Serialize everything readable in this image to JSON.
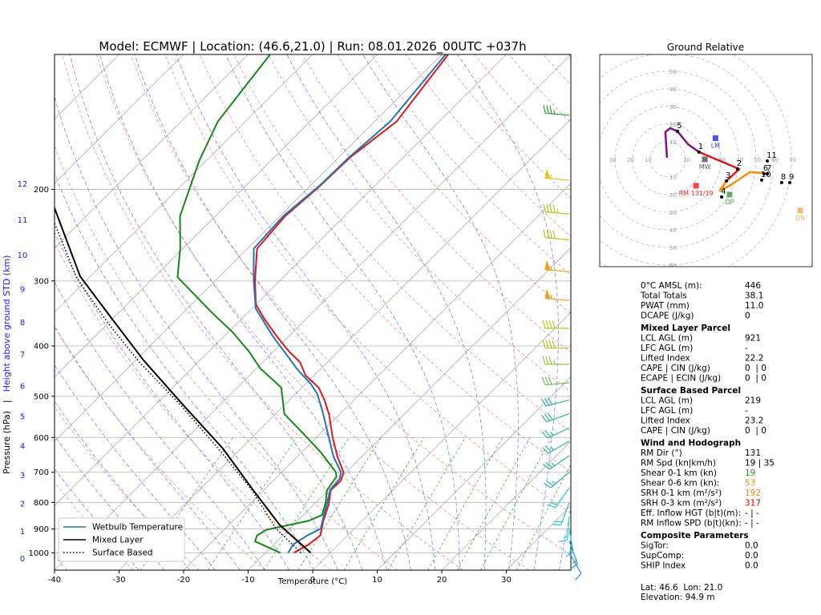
{
  "chart_data": [
    {
      "type": "skewt",
      "title": "Model: ECMWF | Location: (46.6,21.0) | Run: 08.01.2026_00UTC +037h",
      "xlabel": "Temperature (°C)",
      "ylabel": "Pressure (hPa)",
      "ylabel_separator": "|",
      "y2label": "Height above ground STD (km)",
      "xlim": [
        -40,
        40
      ],
      "xticks": [
        -40,
        -30,
        -20,
        -10,
        0,
        10,
        20,
        30
      ],
      "ylim": [
        1080,
        110
      ],
      "yticks": [
        1000,
        900,
        800,
        700,
        600,
        500,
        400,
        300,
        200
      ],
      "log_y": true,
      "grid": true,
      "height_ticks": [
        0,
        1,
        2,
        3,
        4,
        5,
        6,
        7,
        8,
        9,
        10,
        11,
        12
      ],
      "legend": "lower left",
      "series": [
        {
          "color": "#e8141a",
          "pressure": [
            1000,
            964,
            926,
            868,
            808,
            758,
            727,
            700,
            653,
            597,
            542,
            508,
            481,
            456,
            430,
            410,
            383,
            354,
            333,
            300,
            260,
            225,
            199,
            173,
            148,
            110
          ],
          "values": [
            -5.6,
            -4.6,
            -4.2,
            -6.0,
            -7.7,
            -9.6,
            -9.5,
            -10.4,
            -13.8,
            -17.7,
            -21.6,
            -24.6,
            -27.4,
            -31.3,
            -34.2,
            -37.6,
            -41.9,
            -46.6,
            -50.0,
            -53.8,
            -58.5,
            -59.2,
            -58.5,
            -58.2,
            -56.6,
            -59.0
          ]
        },
        {
          "color": "#138a13",
          "pressure": [
            1000,
            951,
            926,
            903,
            868,
            846,
            800,
            758,
            714,
            700,
            641,
            585,
            541,
            481,
            442,
            410,
            376,
            345,
            295,
            260,
            225,
            176,
            148,
            110
          ],
          "values": [
            -7.7,
            -13.4,
            -14.0,
            -13.4,
            -8.3,
            -7.1,
            -8.5,
            -10.2,
            -10.8,
            -11.6,
            -17.0,
            -23.2,
            -28.6,
            -33.2,
            -39.4,
            -43.8,
            -49.4,
            -55.6,
            -66.4,
            -70.4,
            -75.5,
            -81.1,
            -84.3,
            -86.6
          ]
        },
        {
          "name": "Wetbulb Temperature",
          "color": "#1f77b4",
          "pressure": [
            1000,
            964,
            925,
            899,
            853,
            808,
            758,
            721,
            700,
            653,
            597,
            537,
            495,
            474,
            442,
            419,
            383,
            339,
            300,
            260,
            225,
            197,
            173,
            148,
            110
          ],
          "values": [
            -6.5,
            -7.0,
            -6.2,
            -5.2,
            -6.6,
            -8.0,
            -9.7,
            -10.0,
            -10.8,
            -14.4,
            -18.3,
            -22.9,
            -26.6,
            -29.1,
            -33.8,
            -37.0,
            -42.5,
            -49.4,
            -54.0,
            -59.0,
            -59.5,
            -58.6,
            -58.4,
            -57.6,
            -59.4
          ]
        },
        {
          "name": "Mixed Layer",
          "color": "#000000",
          "linestyle": "solid",
          "pressure": [
            1000,
            883,
            758,
            630,
            518,
            426,
            357,
            294,
            210
          ],
          "values": [
            -3.0,
            -12.2,
            -21.6,
            -32.8,
            -45.9,
            -58.8,
            -69.7,
            -81.6,
            -97.8
          ]
        },
        {
          "name": "Surface Based",
          "color": "#000000",
          "linestyle": "dotted",
          "pressure": [
            1000,
            899,
            758,
            635,
            518,
            430,
            360,
            296,
            219
          ],
          "values": [
            -4.5,
            -12.1,
            -21.8,
            -33.0,
            -46.3,
            -59.1,
            -70.3,
            -81.9,
            -96.7
          ]
        }
      ],
      "wind": {
        "pressure": [
          144,
          192,
          223,
          250,
          288,
          327,
          370,
          404,
          434,
          471,
          508,
          540,
          575,
          610,
          650,
          700,
          750,
          800,
          850,
          900,
          950,
          1000
        ],
        "direction": [
          275,
          275,
          275,
          275,
          275,
          275,
          270,
          270,
          270,
          265,
          255,
          250,
          245,
          240,
          235,
          230,
          215,
          200,
          185,
          170,
          160,
          150
        ],
        "speed": [
          35,
          55,
          45,
          40,
          55,
          55,
          40,
          40,
          35,
          30,
          30,
          30,
          25,
          25,
          25,
          25,
          20,
          20,
          15,
          15,
          15,
          10
        ],
        "colors": [
          "#2ca02c",
          "#e6c619",
          "#b8c41a",
          "#b8c41a",
          "#f0a01a",
          "#f0a01a",
          "#b8c41a",
          "#b8c41a",
          "#8cc63e",
          "#6cc04a",
          "#2ab5a0",
          "#2ab5a0",
          "#2ab5a0",
          "#2ab5a0",
          "#2ab5a0",
          "#2ab5a0",
          "#20c8c8",
          "#20c8c8",
          "#20d0e0",
          "#20d0e0",
          "#1e9be0",
          "#1e90ff"
        ]
      }
    },
    {
      "type": "hodograph",
      "title": "Ground Relative",
      "xlim": [
        -38.6,
        81.8
      ],
      "ylim": [
        -60.9,
        59.5
      ],
      "rings": [
        10,
        20,
        30,
        40,
        50,
        60,
        70
      ],
      "series": [
        {
          "color": "#7b0f8a",
          "u": [
            -0.5,
            -1.4,
            1.4,
            5.5,
            11.4,
            17.7
          ],
          "v": [
            0.9,
            15.5,
            17.7,
            15.9,
            8.6,
            4.1
          ]
        },
        {
          "color": "#e8141a",
          "u": [
            17.7,
            40.5,
            33.2
          ],
          "v": [
            4.1,
            -5.5,
            -12.3
          ]
        },
        {
          "color": "#ff8c00",
          "u": [
            33.2,
            29.5,
            35.0,
            46.4,
            53.2,
            56.4
          ],
          "v": [
            -12.3,
            -17.7,
            -15.0,
            -7.3,
            -7.7,
            -8.2
          ]
        }
      ],
      "points": {
        "labels": [
          "1",
          "2",
          "3",
          "4",
          "5",
          "6",
          "7",
          "8",
          "9",
          "10",
          "11"
        ],
        "u": [
          17.7,
          39.5,
          33.2,
          30.5,
          5.5,
          54.5,
          56.4,
          64.5,
          69.1,
          53.2,
          56.4
        ],
        "v": [
          4.1,
          -5.5,
          -12.3,
          -21.4,
          15.9,
          -8.2,
          -8.2,
          -13.2,
          -13.2,
          -11.8,
          -0.9
        ]
      },
      "markers": [
        {
          "label": "LM",
          "color": "#3030ff",
          "u": 27.0,
          "v": 12.0
        },
        {
          "label": "MW",
          "color": "#606060",
          "u": 21.0,
          "v": 0.0
        },
        {
          "label": "RM 131/19",
          "color": "#ff2020",
          "u": 16.0,
          "v": -15.0
        },
        {
          "label": "DP",
          "color": "#40a040",
          "u": 35.0,
          "v": -20.0
        },
        {
          "label": "DN",
          "color": "#f0b050",
          "u": 75.0,
          "v": -29.0
        }
      ]
    }
  ],
  "parameters": {
    "sections": [
      {
        "rows": [
          {
            "label": "0°C AMSL (m):",
            "value": "446"
          },
          {
            "label": "Total Totals",
            "value": "38.1"
          },
          {
            "label": "PWAT (mm)",
            "value": "11.0"
          },
          {
            "label": "DCAPE (J/kg)",
            "value": "0"
          }
        ]
      },
      {
        "heading": "Mixed Layer Parcel",
        "rows": [
          {
            "label": "LCL AGL (m)",
            "value": "921"
          },
          {
            "label": "LFC AGL (m)",
            "value": "-"
          },
          {
            "label": "Lifted Index",
            "value": "22.2"
          },
          {
            "label": "CAPE | CIN (J/kg)",
            "value": "0  | 0"
          },
          {
            "label": "ECAPE | ECIN (J/kg)",
            "value": "0  | 0"
          }
        ]
      },
      {
        "heading": "Surface Based Parcel",
        "rows": [
          {
            "label": "LCL AGL (m)",
            "value": "219"
          },
          {
            "label": "LFC AGL (m)",
            "value": "-"
          },
          {
            "label": "Lifted Index",
            "value": "23.2"
          },
          {
            "label": "CAPE | CIN (J/kg)",
            "value": "0  | 0"
          }
        ]
      },
      {
        "heading": "Wind and Hodograph",
        "rows": [
          {
            "label": "RM Dir (°)",
            "value": "131"
          },
          {
            "label": "RM Spd (kn|km/h)",
            "value": "19 | 35"
          },
          {
            "label": "Shear 0-1 km (kn)",
            "value": "19",
            "color": "#1a9a1a"
          },
          {
            "label": "Shear 0-6 km (kn):",
            "value": "53",
            "color": "#ff8c00"
          },
          {
            "label": "SRH 0-1 km (m²/s²)",
            "value": "192",
            "color": "#ff8c00"
          },
          {
            "label": "SRH 0-3 km (m²/s²)",
            "value": "317",
            "color": "#e00000"
          },
          {
            "label": "Eff. Inflow HGT (b|t)(m):",
            "value": "- | -"
          },
          {
            "label": "RM Inflow SPD (b|t)(kn):",
            "value": "- | -"
          }
        ]
      },
      {
        "heading": "Composite Parameters",
        "rows": [
          {
            "label": "SigTor:",
            "value": "0.0"
          },
          {
            "label": "SupComp:",
            "value": "0.0"
          },
          {
            "label": "SHIP Index",
            "value": "0.0"
          }
        ]
      }
    ]
  },
  "footer": {
    "location": "Lat: 46.6  Lon: 21.0",
    "elevation": "Elevation: 94.9 m"
  }
}
